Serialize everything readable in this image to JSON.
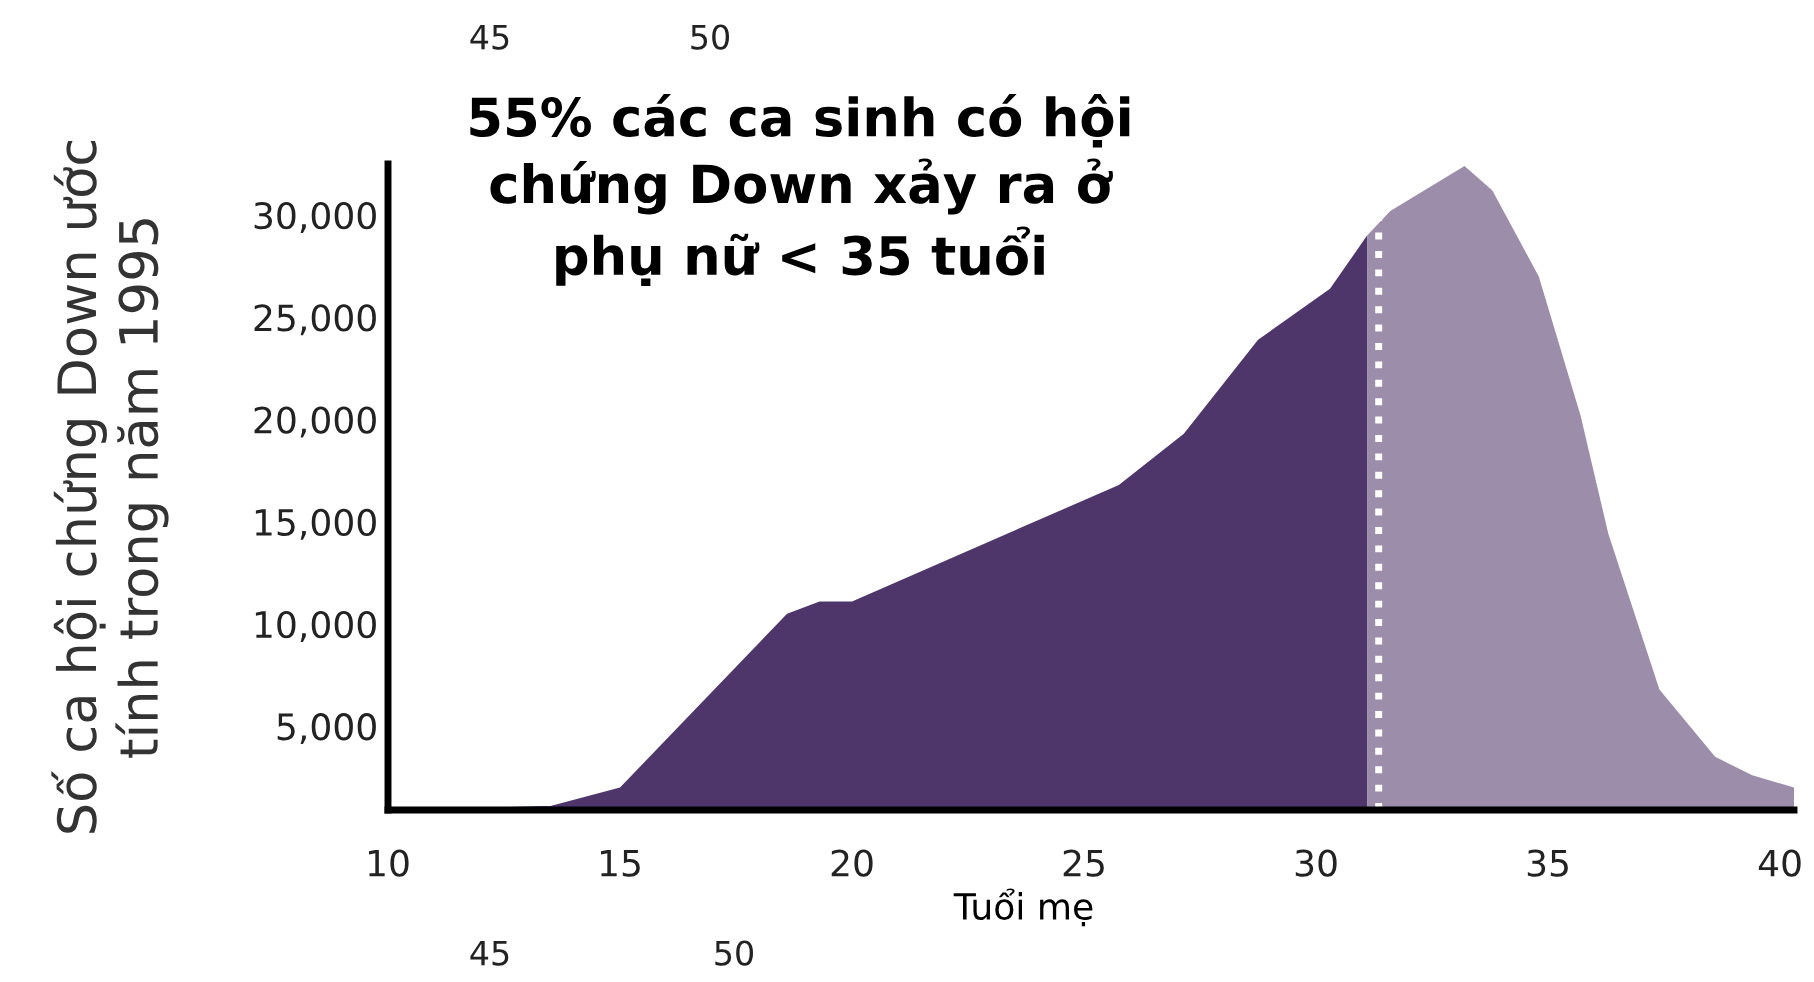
{
  "chart_data": {
    "type": "area",
    "title": "55% các ca sinh có hội\nchứng Down xảy ra ở\nphụ nữ < 35 tuổi",
    "xlabel": "Tuổi mẹ",
    "ylabel": "Số ca hội chứng Down ước\ntính trong năm 1995",
    "xlim": [
      10,
      40.3
    ],
    "xticks": [
      10,
      15,
      20,
      25,
      30,
      35,
      40
    ],
    "ylim": [
      900,
      32500
    ],
    "yticks": [
      {
        "value": 5000,
        "label": "5,000"
      },
      {
        "value": 10000,
        "label": "10,000"
      },
      {
        "value": 15000,
        "label": "15,000"
      },
      {
        "value": 20000,
        "label": "20,000"
      },
      {
        "value": 25000,
        "label": "25,000"
      },
      {
        "value": 30000,
        "label": "30,000"
      }
    ],
    "grid": false,
    "legend": false,
    "series": [
      {
        "color": "#4e366b",
        "x": [
          10,
          11.9,
          13.3,
          13.5,
          15,
          18.6,
          19.3,
          20,
          25.75,
          27.15,
          28.75,
          30.3,
          31.1
        ],
        "values": [
          900,
          1000,
          1100,
          1100,
          2000,
          10500,
          11100,
          11100,
          16800,
          19300,
          23900,
          26400,
          29000
        ]
      },
      {
        "color": "#9c8dab",
        "x": [
          31.1,
          31.6,
          33.2,
          33.8,
          34.8,
          35.7,
          36.3,
          37.4,
          38.6,
          39.4,
          40.3
        ],
        "values": [
          29000,
          30200,
          32400,
          31200,
          27000,
          20200,
          14400,
          6800,
          3500,
          2600,
          2000
        ]
      }
    ],
    "ref_lines": [
      {
        "axis": "x",
        "value": 31.35,
        "color": "#ffffff",
        "line_style": "dotted"
      }
    ],
    "annotations": [
      "45",
      "50",
      "45",
      "50"
    ]
  }
}
